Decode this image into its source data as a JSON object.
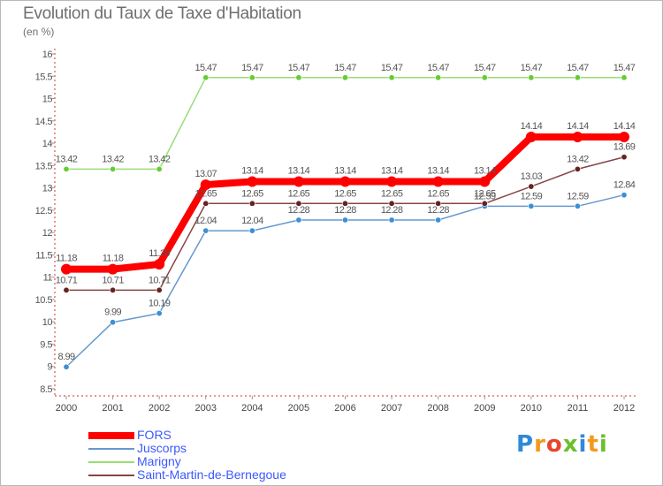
{
  "title": "Evolution du Taux de Taxe d'Habitation",
  "subtitle": "(en %)",
  "logo": {
    "letters": [
      "P",
      "r",
      "o",
      "x",
      "i",
      "t",
      "i"
    ],
    "colors": [
      "#2e8ad8",
      "#f39a1d",
      "#e8452b",
      "#6cbf2a",
      "#2e8ad8",
      "#f39a1d",
      "#6cbf2a"
    ]
  },
  "chart_data": {
    "type": "line",
    "x": [
      "2000",
      "2001",
      "2002",
      "2003",
      "2004",
      "2005",
      "2006",
      "2007",
      "2008",
      "2009",
      "2010",
      "2011",
      "2012"
    ],
    "ylim": [
      8.5,
      16
    ],
    "yticks": [
      "8.5",
      "9",
      "9.5",
      "10",
      "10.5",
      "11",
      "11.5",
      "12",
      "12.5",
      "13",
      "13.5",
      "14",
      "14.5",
      "15",
      "15.5",
      "16"
    ],
    "grid": "none",
    "legend_position": "bottom-left",
    "series": [
      {
        "name": "FORS",
        "color": "#ff0000",
        "highlight": true,
        "values": [
          11.18,
          11.18,
          11.29,
          13.07,
          13.14,
          13.14,
          13.14,
          13.14,
          13.14,
          13.14,
          14.14,
          14.14,
          14.14
        ],
        "labels": [
          "11.18",
          "11.18",
          "11.29",
          "13.07",
          "13.14",
          "13.14",
          "13.14",
          "13.14",
          "13.14",
          "13.14",
          "14.14",
          "14.14",
          "14.14"
        ]
      },
      {
        "name": "Juscorps",
        "color": "#6699cc",
        "marker_color": "#3d8fd6",
        "values": [
          8.99,
          9.99,
          10.19,
          12.04,
          12.04,
          12.28,
          12.28,
          12.28,
          12.28,
          12.59,
          12.59,
          12.59,
          12.84
        ],
        "labels": [
          "8.99",
          "9.99",
          "10.19",
          "12.04",
          "12.04",
          "12.28",
          "12.28",
          "12.28",
          "12.28",
          "12.59",
          "12.59",
          "12.59",
          "12.84"
        ]
      },
      {
        "name": "Marigny",
        "color": "#99dd77",
        "marker_color": "#66cc33",
        "values": [
          13.42,
          13.42,
          13.42,
          15.47,
          15.47,
          15.47,
          15.47,
          15.47,
          15.47,
          15.47,
          15.47,
          15.47,
          15.47
        ],
        "labels": [
          "13.42",
          "13.42",
          "13.42",
          "15.47",
          "15.47",
          "15.47",
          "15.47",
          "15.47",
          "15.47",
          "15.47",
          "15.47",
          "15.47",
          "15.47"
        ]
      },
      {
        "name": "Saint-Martin-de-Bernegoue",
        "color": "#884444",
        "marker_color": "#662222",
        "values": [
          10.71,
          10.71,
          10.71,
          12.65,
          12.65,
          12.65,
          12.65,
          12.65,
          12.65,
          12.65,
          13.03,
          13.42,
          13.69
        ],
        "labels": [
          "10.71",
          "10.71",
          "10.71",
          "12.65",
          "12.65",
          "12.65",
          "12.65",
          "12.65",
          "12.65",
          "12.65",
          "13.03",
          "13.42",
          "13.69"
        ]
      }
    ]
  }
}
